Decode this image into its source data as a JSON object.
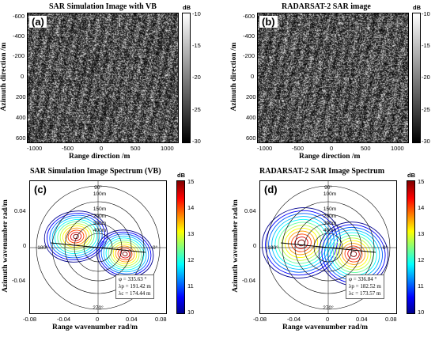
{
  "panels": [
    {
      "id": "a",
      "title": "SAR Simulation Image with VB",
      "tag": "(a)",
      "xlabel": "Range direction /m",
      "ylabel": "Azimuth direction /m",
      "xticks": [
        "-1000",
        "-500",
        "0",
        "500",
        "1000"
      ],
      "yticks": [
        "-600",
        "-400",
        "-200",
        "0",
        "200",
        "400",
        "600"
      ],
      "colorbar": {
        "unit": "dB",
        "ticks": [
          "-10",
          "-15",
          "-20",
          "-25",
          "-30"
        ],
        "colormap": "gray"
      }
    },
    {
      "id": "b",
      "title": "RADARSAT-2 SAR image",
      "tag": "(b)",
      "xlabel": "Range direction /m",
      "ylabel": "Azimuth direction /m",
      "xticks": [
        "-1000",
        "-500",
        "0",
        "500",
        "1000"
      ],
      "yticks": [
        "-600",
        "-400",
        "-200",
        "0",
        "200",
        "400",
        "600"
      ],
      "colorbar": {
        "unit": "dB",
        "ticks": [
          "-10",
          "-15",
          "-20",
          "-25",
          "-30"
        ],
        "colormap": "gray"
      }
    },
    {
      "id": "c",
      "title": "SAR Simulation Image Spectrum (VB)",
      "tag": "(c)",
      "xlabel": "Range wavenumber rad/m",
      "ylabel": "Azimuth wavenumber rad/m",
      "xticks": [
        "-0.08",
        "-0.04",
        "0",
        "0.04",
        "0.08"
      ],
      "yticks": [
        "0.04",
        "0",
        "-0.04"
      ],
      "polar_labels": {
        "top": "90°",
        "bottom": "270°",
        "left": "180°",
        "right": "0°"
      },
      "ring_labels": [
        "100m",
        "150m",
        "200m",
        "300m",
        "400m"
      ],
      "info": {
        "phi": "φ = 335.63 °",
        "lp": "λp = 191.42 m",
        "lc": "λc = 174.44 m"
      },
      "colorbar": {
        "unit": "dB",
        "ticks": [
          "15",
          "14",
          "13",
          "12",
          "11",
          "10"
        ],
        "colormap": "jet"
      }
    },
    {
      "id": "d",
      "title": "RADARSAT-2 SAR Image Spectrum",
      "tag": "(d)",
      "xlabel": "Range wavenumber rad/m",
      "ylabel": "Azimuth wavenumber rad/m",
      "xticks": [
        "-0.08",
        "-0.04",
        "0",
        "0.04",
        "0.08"
      ],
      "yticks": [
        "0.04",
        "0",
        "-0.04"
      ],
      "polar_labels": {
        "top": "90°",
        "bottom": "270°",
        "left": "180°",
        "right": "0°"
      },
      "ring_labels": [
        "100m",
        "150m",
        "200m",
        "300m",
        "400m"
      ],
      "info": {
        "phi": "φ = 336.84 °",
        "lp": "λp = 182.52 m",
        "lc": "λc = 173.57 m"
      },
      "colorbar": {
        "unit": "dB",
        "ticks": [
          "15",
          "14",
          "13",
          "12",
          "11",
          "10"
        ],
        "colormap": "jet"
      }
    }
  ]
}
